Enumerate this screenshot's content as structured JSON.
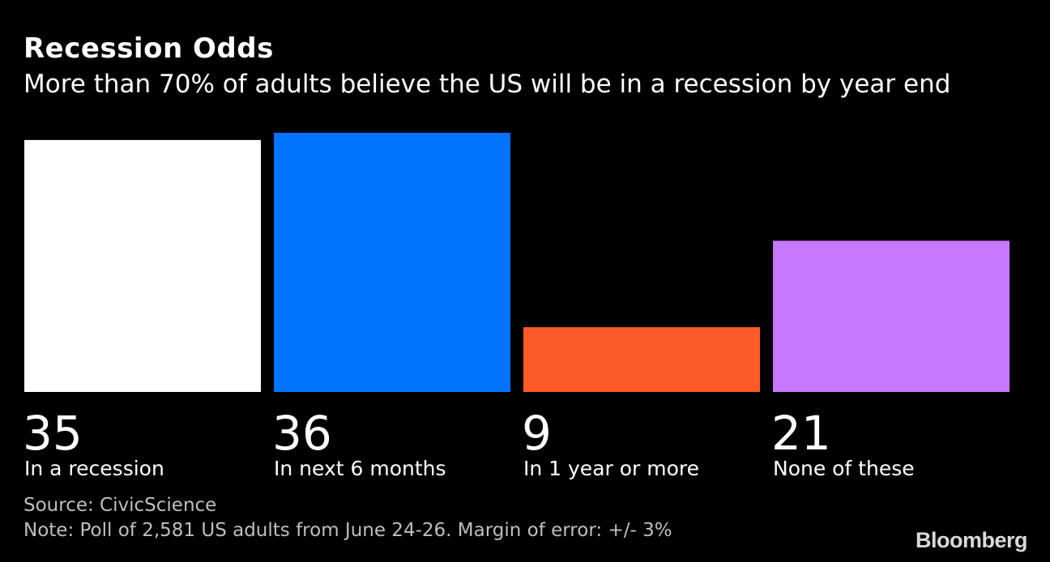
{
  "chart_data": {
    "type": "bar",
    "title": "Recession Odds",
    "subtitle": "More than 70% of adults believe the US will be in a recession by year end",
    "categories": [
      "In a recession",
      "In next 6 months",
      "In 1 year or more",
      "None of these"
    ],
    "values": [
      35,
      36,
      9,
      21
    ],
    "value_labels": [
      "35",
      "36",
      "9",
      "21"
    ],
    "colors": [
      "#ffffff",
      "#0073ff",
      "#fc5a28",
      "#c877ff"
    ],
    "xlabel": "",
    "ylabel": "",
    "ylim": [
      0,
      36
    ],
    "grid": false,
    "legend": "none"
  },
  "footer": {
    "source": "Source: CivicScience",
    "note": "Note: Poll of 2,581 US adults from June 24-26. Margin of error: +/- 3%"
  },
  "brand": {
    "name": "Bloomberg"
  }
}
